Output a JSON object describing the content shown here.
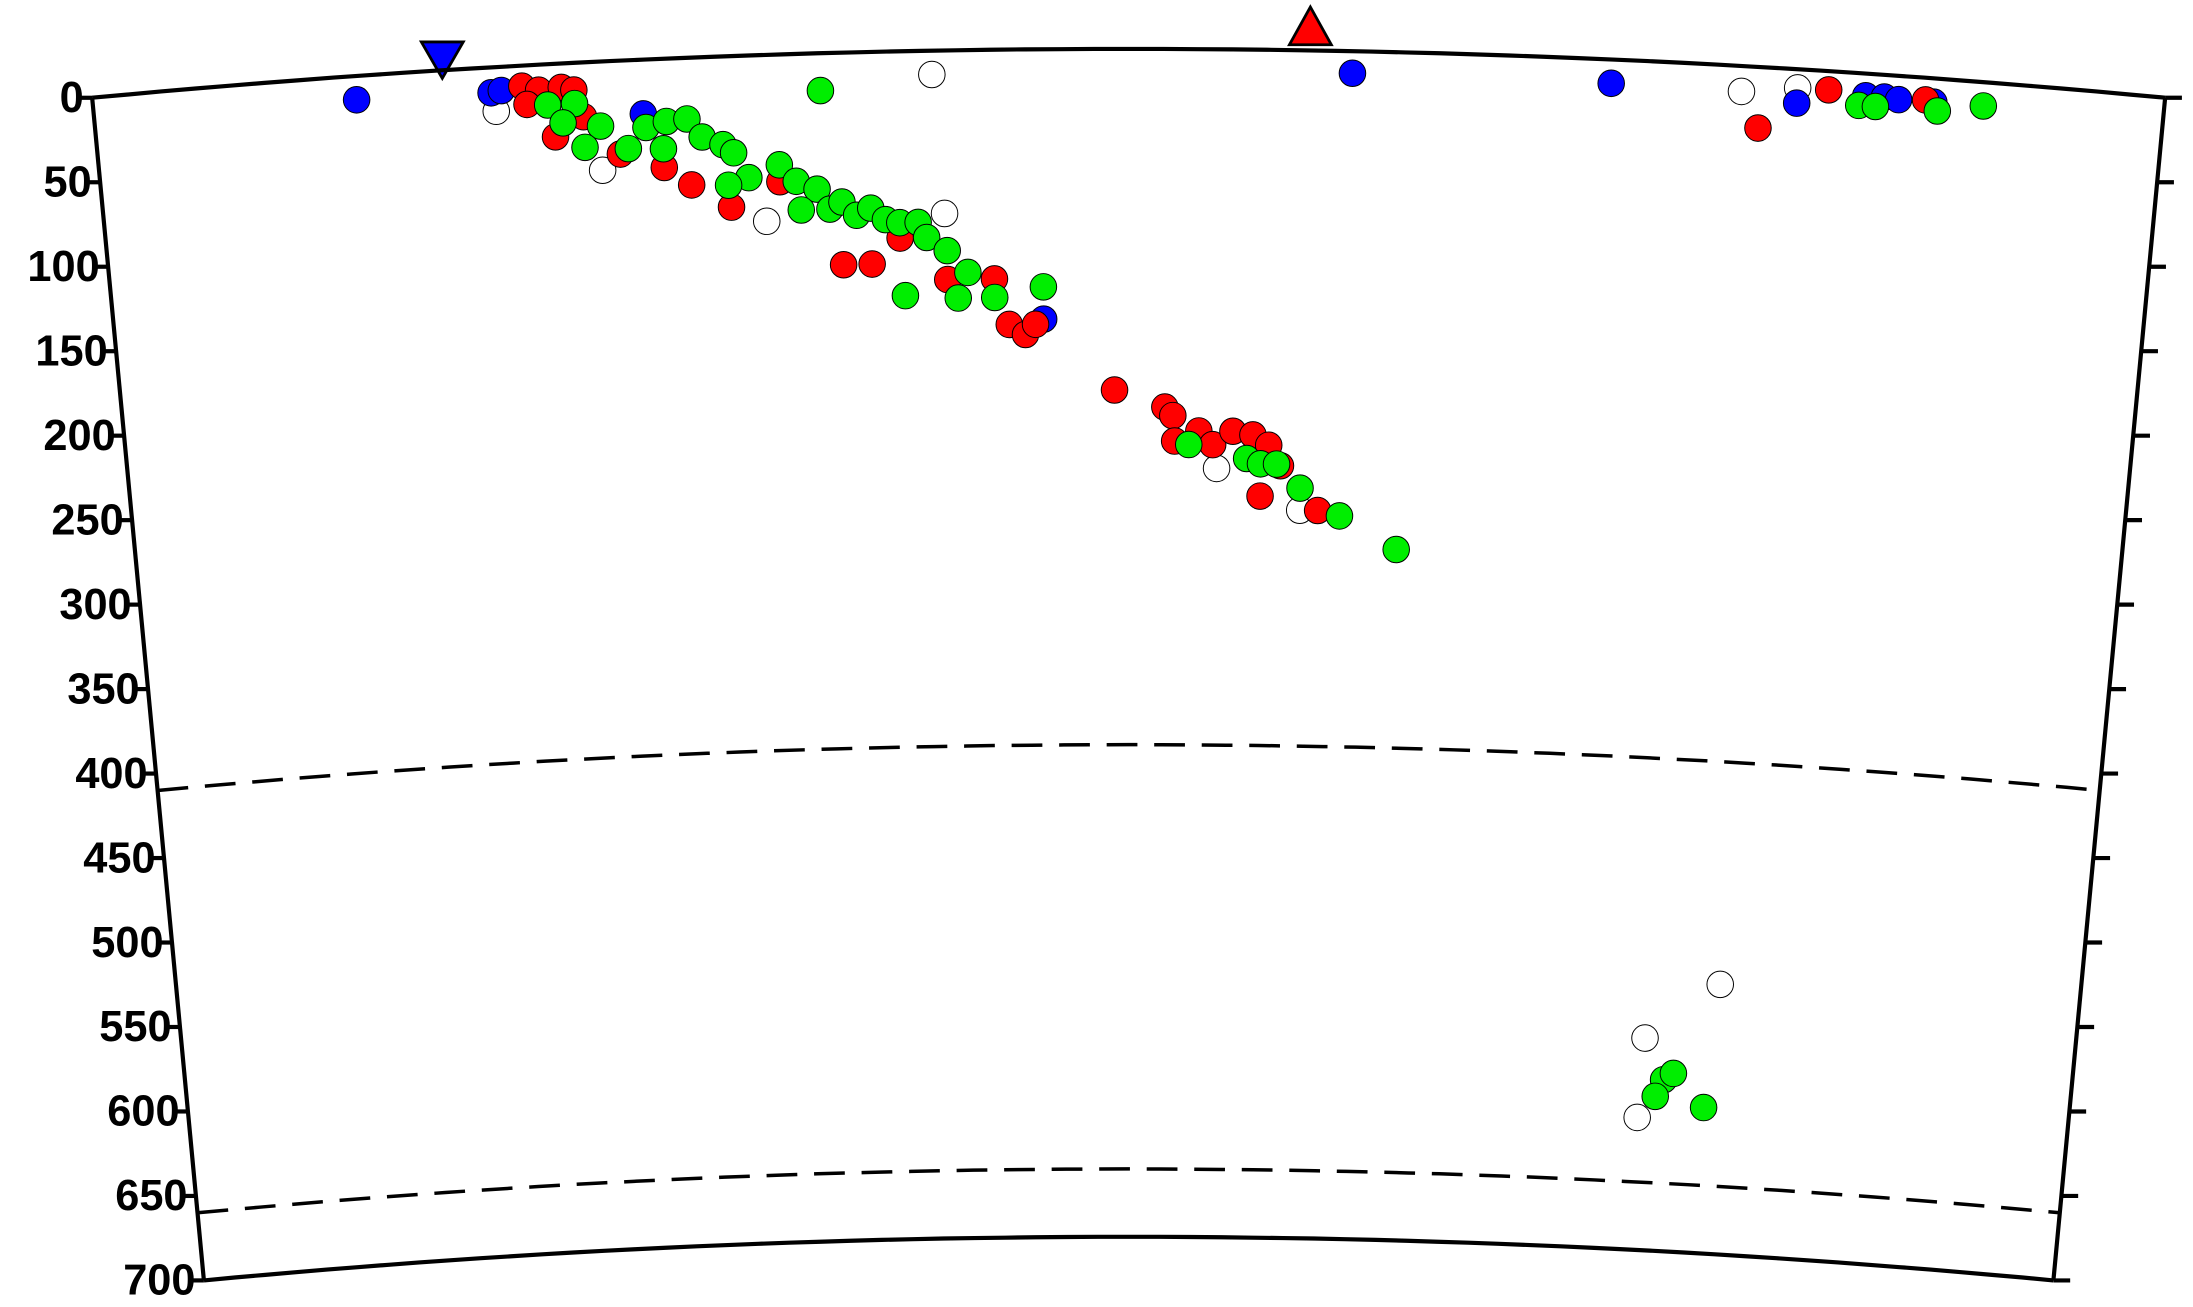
{
  "chart_data": {
    "type": "scatter",
    "xlim": [
      0,
      100
    ],
    "ylim": [
      0,
      700
    ],
    "yticks": [
      0,
      50,
      100,
      150,
      200,
      250,
      300,
      350,
      400,
      450,
      500,
      550,
      600,
      650,
      700
    ],
    "discontinuities": [
      410,
      660
    ],
    "series": [
      {
        "color": "#ffffff",
        "x": [
          40.5,
          19.4,
          24.4,
          32.3,
          41,
          54.4,
          58.6,
          79.6,
          82.3,
          81.1,
          77.3,
          77.1
        ],
        "values": [
          14,
          26,
          64,
          98,
          96,
          247,
          271,
          15,
          11,
          541,
          575,
          622
        ]
      },
      {
        "color": "#0000ff",
        "x": [
          12.7,
          19.2,
          19.7,
          26.5,
          45.8,
          60.8,
          73.3,
          82.3,
          85.6,
          86.5,
          87.2,
          88.9
        ],
        "values": [
          14,
          15,
          14,
          32,
          159,
          13,
          14,
          20,
          13,
          13,
          14,
          14
        ]
      },
      {
        "color": "#ff0000",
        "x": [
          20.7,
          21.5,
          22.6,
          23.2,
          20.9,
          22.2,
          23.6,
          25.3,
          27.4,
          28.7,
          30.6,
          33,
          36,
          37.4,
          38.8,
          41.1,
          43.4,
          44.1,
          44.9,
          45.4,
          49.3,
          51.8,
          52.2,
          52.3,
          53.5,
          54.2,
          55.2,
          56.2,
          57,
          57.6,
          56.6,
          59.5,
          80.5,
          83.8,
          88.5
        ],
        "values": [
          12,
          15,
          14,
          16,
          23,
          43,
          32,
          55,
          64,
          75,
          89,
          75,
          125,
          125,
          110,
          135,
          135,
          162,
          168,
          162,
          201,
          211,
          216,
          231,
          225,
          233,
          225,
          227,
          233,
          245,
          263,
          271,
          36,
          11,
          13
        ]
      },
      {
        "color": "#00ee00",
        "x": [
          35.1,
          21.9,
          23.2,
          22.6,
          24.4,
          23.6,
          25.7,
          26.6,
          27.6,
          28.6,
          27.4,
          29.3,
          30.3,
          30.8,
          31.5,
          30.5,
          33,
          33.8,
          34.8,
          34,
          35.4,
          36,
          36.7,
          37.4,
          38.1,
          38.8,
          39.7,
          40.1,
          41.1,
          42.1,
          39,
          41.6,
          43.4,
          45.8,
          53,
          55.9,
          56.6,
          57.4,
          58.6,
          60.6,
          63.5,
          78.4,
          78.9,
          78,
          80.6,
          85.3,
          86.1,
          89.1,
          91.3
        ],
        "values": [
          22,
          24,
          24,
          35,
          38,
          50,
          52,
          40,
          37,
          36,
          53,
          47,
          52,
          57,
          72,
          76,
          65,
          75,
          80,
          92,
          92,
          88,
          96,
          92,
          99,
          101,
          101,
          110,
          118,
          131,
          144,
          146,
          146,
          140,
          233,
          241,
          244,
          244,
          258,
          274,
          293,
          599,
          595,
          609,
          614,
          19,
          19,
          19,
          14
        ]
      }
    ]
  }
}
